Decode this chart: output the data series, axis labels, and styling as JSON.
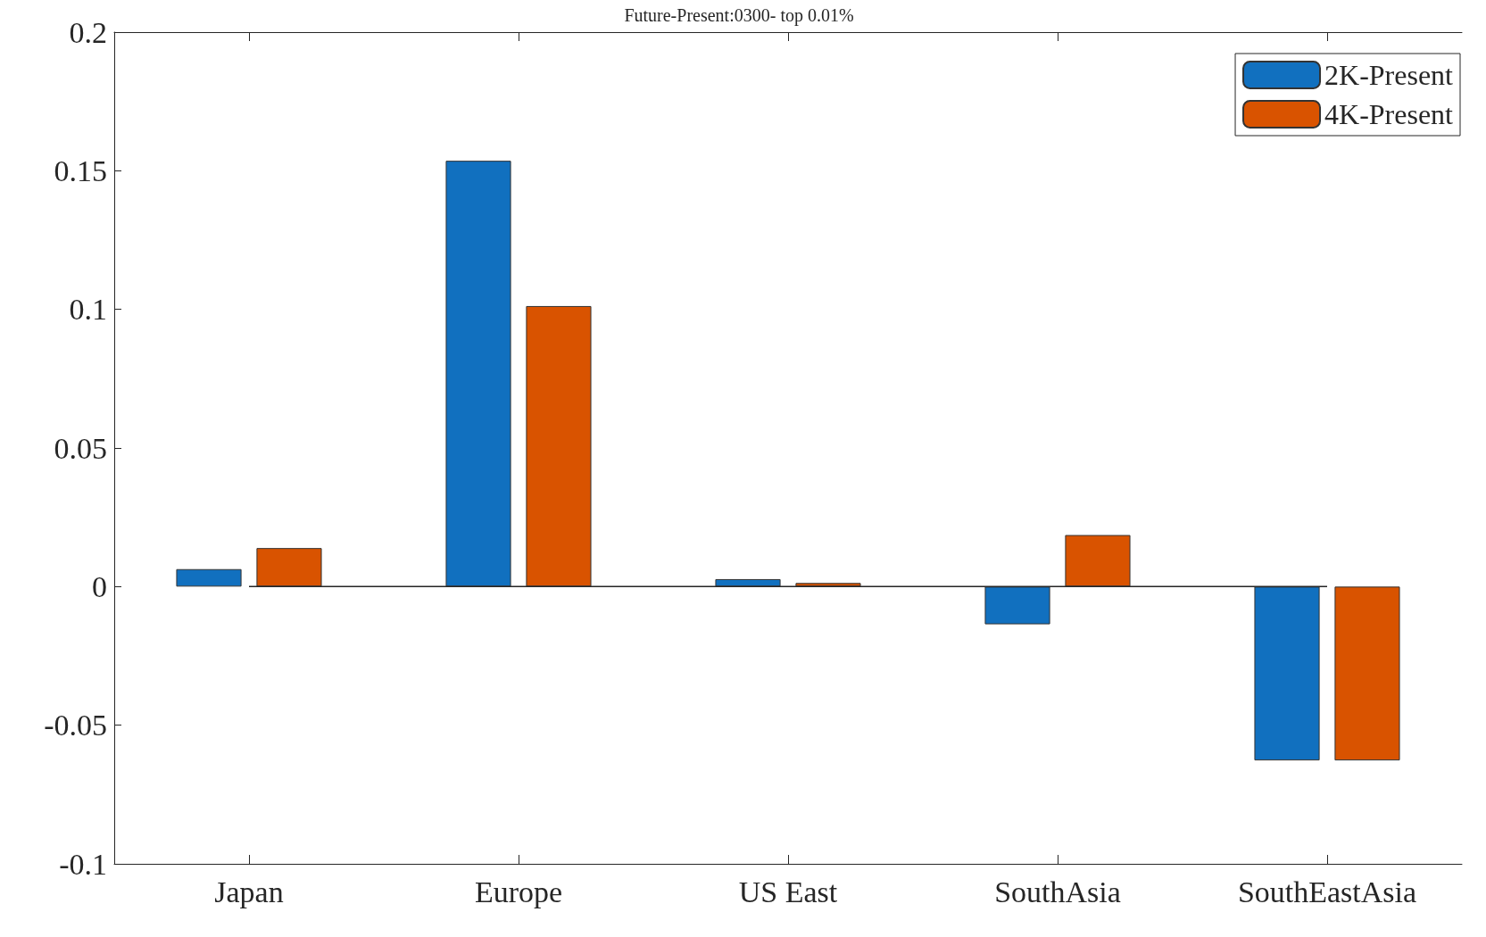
{
  "chart_data": {
    "type": "bar",
    "subtitle": "Future-Present:0300- top 0.01%",
    "categories": [
      "Japan",
      "Europe",
      "US East",
      "SouthAsia",
      "SouthEastAsia"
    ],
    "series": [
      {
        "name": "2K-Present",
        "color": "#1170bf",
        "values": [
          0.0063,
          0.1536,
          0.0027,
          -0.0136,
          -0.0627
        ]
      },
      {
        "name": "4K-Present",
        "color": "#d95300",
        "values": [
          0.0139,
          0.1012,
          0.0013,
          0.0186,
          -0.0627
        ]
      }
    ],
    "ylim": [
      -0.1,
      0.2
    ],
    "yticks": [
      -0.1,
      -0.05,
      0,
      0.05,
      0.1,
      0.15,
      0.2
    ],
    "grid": false,
    "legend": "top right"
  }
}
